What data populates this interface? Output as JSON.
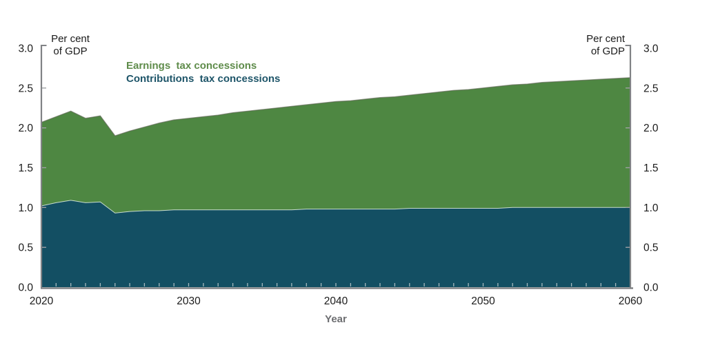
{
  "labels": {
    "unit_line1": "Per cent",
    "unit_line2": "of GDP",
    "x_axis": "Year"
  },
  "legend": [
    {
      "label": "Earnings  tax concessions",
      "color": "#5f8c4b"
    },
    {
      "label": "Contributions  tax concessions",
      "color": "#1e5569"
    }
  ],
  "colors": {
    "earnings_area": "#4e8742",
    "contributions_area": "#134f63",
    "axis": "#808285",
    "tick": "#9ea1a4",
    "minor_tick": "#d9dedd",
    "tick_text": "#1a1a1a"
  },
  "chart_data": {
    "type": "area",
    "stacked": true,
    "xlabel": "Year",
    "ylabel": "Per cent of GDP",
    "ylim": [
      0.0,
      3.0
    ],
    "yticks": [
      0.0,
      0.5,
      1.0,
      1.5,
      2.0,
      2.5,
      3.0
    ],
    "xticks_labeled": [
      2020,
      2030,
      2040,
      2050,
      2060
    ],
    "x": [
      2020,
      2021,
      2022,
      2023,
      2024,
      2025,
      2026,
      2027,
      2028,
      2029,
      2030,
      2031,
      2032,
      2033,
      2034,
      2035,
      2036,
      2037,
      2038,
      2039,
      2040,
      2041,
      2042,
      2043,
      2044,
      2045,
      2046,
      2047,
      2048,
      2049,
      2050,
      2051,
      2052,
      2053,
      2054,
      2055,
      2056,
      2057,
      2058,
      2059,
      2060
    ],
    "series": [
      {
        "name": "Contributions tax concessions",
        "color": "#134f63",
        "values": [
          1.02,
          1.06,
          1.09,
          1.06,
          1.07,
          0.93,
          0.95,
          0.96,
          0.96,
          0.97,
          0.97,
          0.97,
          0.97,
          0.97,
          0.97,
          0.97,
          0.97,
          0.97,
          0.98,
          0.98,
          0.98,
          0.98,
          0.98,
          0.98,
          0.98,
          0.99,
          0.99,
          0.99,
          0.99,
          0.99,
          0.99,
          0.99,
          1.0,
          1.0,
          1.0,
          1.0,
          1.0,
          1.0,
          1.0,
          1.0,
          1.0
        ]
      },
      {
        "name": "Earnings tax concessions",
        "color": "#4e8742",
        "values": [
          1.05,
          1.08,
          1.12,
          1.06,
          1.08,
          0.97,
          1.01,
          1.05,
          1.1,
          1.13,
          1.15,
          1.17,
          1.19,
          1.22,
          1.24,
          1.26,
          1.28,
          1.3,
          1.31,
          1.33,
          1.35,
          1.36,
          1.38,
          1.4,
          1.41,
          1.42,
          1.44,
          1.46,
          1.48,
          1.49,
          1.51,
          1.53,
          1.54,
          1.55,
          1.57,
          1.58,
          1.59,
          1.6,
          1.61,
          1.62,
          1.63
        ]
      }
    ]
  }
}
